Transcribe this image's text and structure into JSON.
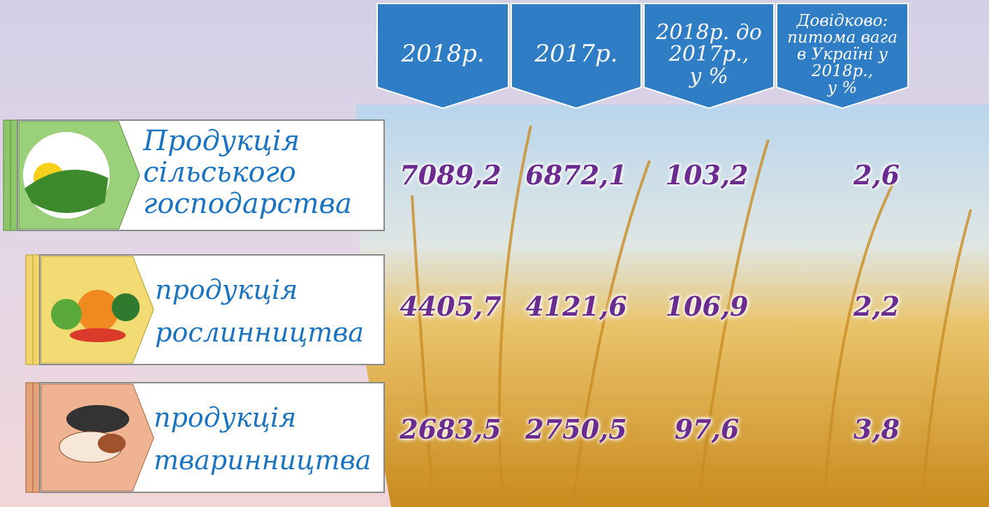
{
  "header": {
    "columns": [
      {
        "lines": [
          "2018р."
        ]
      },
      {
        "lines": [
          "2017р."
        ]
      },
      {
        "lines": [
          "2018р. до",
          "2017р.,",
          "у %"
        ]
      },
      {
        "lines": [
          "Довідково:",
          "питома вага",
          "в Україні у 2018р.,",
          "у %"
        ]
      }
    ]
  },
  "rows": [
    {
      "label": [
        "Продукція",
        "сільського",
        "господарства"
      ],
      "values": [
        "7089,2",
        "6872,1",
        "103,2",
        "2,6"
      ]
    },
    {
      "label": [
        "продукція",
        "рослинництва"
      ],
      "values": [
        "4405,7",
        "4121,6",
        "106,9",
        "2,2"
      ]
    },
    {
      "label": [
        "продукція",
        "тваринництва"
      ],
      "values": [
        "2683,5",
        "2750,5",
        "97,6",
        "3,8"
      ]
    }
  ]
}
